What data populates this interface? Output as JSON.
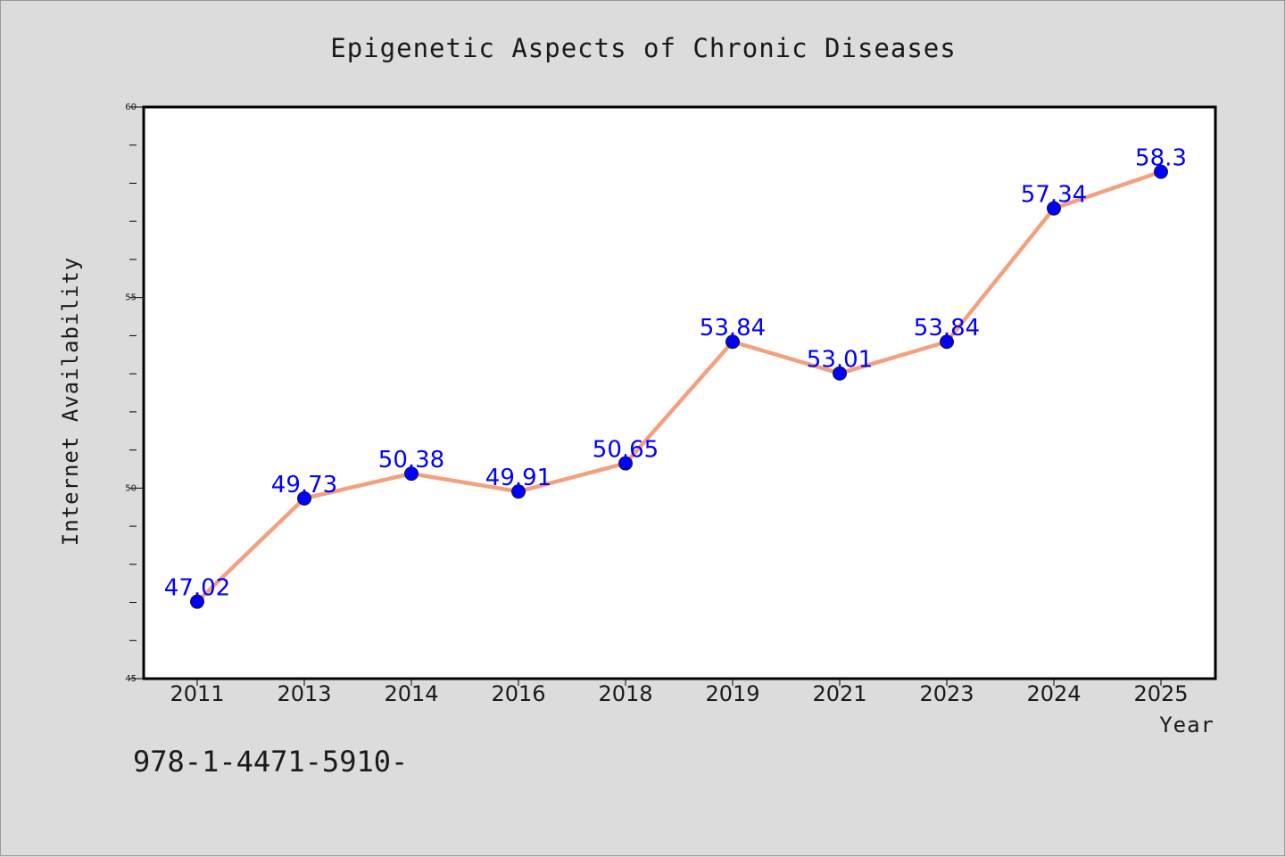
{
  "footer_text": "978-1-4471-5910-",
  "colors": {
    "background": "#dcdcdc",
    "plot_background": "#ffffff",
    "line": "#f4a07f",
    "marker": "#0000ff",
    "data_label": "#0000ff"
  },
  "chart_data": {
    "type": "line",
    "title": "Epigenetic Aspects of Chronic Diseases",
    "xlabel": "Year",
    "ylabel": "Internet Availability",
    "categories": [
      "2011",
      "2013",
      "2014",
      "2016",
      "2018",
      "2019",
      "2021",
      "2023",
      "2024",
      "2025"
    ],
    "series": [
      {
        "values": [
          47.02,
          49.73,
          50.38,
          49.91,
          50.65,
          53.84,
          53.01,
          53.84,
          57.34,
          58.3
        ],
        "labels": [
          "47.02",
          "49.73",
          "50.38",
          "49.91",
          "50.65",
          "53.84",
          "53.01",
          "53.84",
          "57.34",
          "58.3"
        ]
      }
    ],
    "ylim": [
      45,
      60
    ],
    "yticks": [
      45,
      50,
      55,
      60
    ],
    "yticks_minor": [
      46,
      47,
      48,
      49,
      51,
      52,
      53,
      54,
      56,
      57,
      58,
      59
    ],
    "grid": false,
    "legend": "none"
  }
}
